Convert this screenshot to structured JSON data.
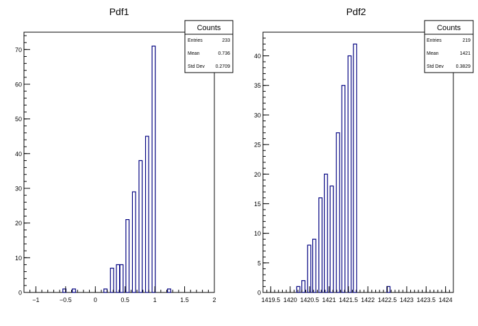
{
  "chart_data": [
    {
      "type": "bar",
      "title": "Pdf1",
      "xlabel": "",
      "ylabel": "",
      "xlim": [
        -1.2,
        2.0
      ],
      "ylim": [
        0,
        75
      ],
      "x_ticks": [
        -1,
        -0.5,
        0,
        0.5,
        1,
        1.5,
        2
      ],
      "x_tick_labels": [
        "−1",
        "−0.5",
        "0",
        "0.5",
        "1",
        "1.5",
        "2"
      ],
      "y_ticks": [
        0,
        10,
        20,
        30,
        40,
        50,
        60,
        70
      ],
      "y_tick_labels": [
        "0",
        "10",
        "20",
        "30",
        "40",
        "50",
        "60",
        "70"
      ],
      "bar_width": 0.0533,
      "bin_centers": [
        -0.52,
        -0.36,
        0.17,
        0.28,
        0.38,
        0.44,
        0.54,
        0.65,
        0.76,
        0.87,
        0.98,
        1.24
      ],
      "values": [
        1,
        1,
        1,
        7,
        8,
        8,
        21,
        29,
        38,
        45,
        71,
        1
      ],
      "series_color": "#000080",
      "stats_box": {
        "title": "Counts",
        "rows": [
          {
            "label": "Entries",
            "value": "233"
          },
          {
            "label": "Mean",
            "value": "0.736"
          },
          {
            "label": "Std Dev",
            "value": "0.2709"
          }
        ]
      }
    },
    {
      "type": "bar",
      "title": "Pdf2",
      "xlabel": "",
      "ylabel": "",
      "xlim": [
        1419.3,
        1424.2
      ],
      "ylim": [
        0,
        44
      ],
      "x_ticks": [
        1419.5,
        1420,
        1420.5,
        1421,
        1421.5,
        1422,
        1422.5,
        1423,
        1423.5,
        1424
      ],
      "x_tick_labels": [
        "1419.5",
        "1420",
        "1420.5",
        "1421",
        "1421.5",
        "1422",
        "1422.5",
        "1423",
        "1423.5",
        "1424"
      ],
      "y_ticks": [
        0,
        5,
        10,
        15,
        20,
        25,
        30,
        35,
        40
      ],
      "y_tick_labels": [
        "0",
        "5",
        "10",
        "15",
        "20",
        "25",
        "30",
        "35",
        "40"
      ],
      "bar_width": 0.0817,
      "bin_centers": [
        1420.21,
        1420.34,
        1420.49,
        1420.62,
        1420.78,
        1420.92,
        1421.07,
        1421.23,
        1421.37,
        1421.53,
        1421.67,
        1422.53
      ],
      "values": [
        1,
        2,
        8,
        9,
        16,
        20,
        18,
        27,
        35,
        40,
        42,
        1
      ],
      "series_color": "#000080",
      "stats_box": {
        "title": "Counts",
        "rows": [
          {
            "label": "Entries",
            "value": "219"
          },
          {
            "label": "Mean",
            "value": "1421"
          },
          {
            "label": "Std Dev",
            "value": "0.3829"
          }
        ]
      }
    }
  ]
}
